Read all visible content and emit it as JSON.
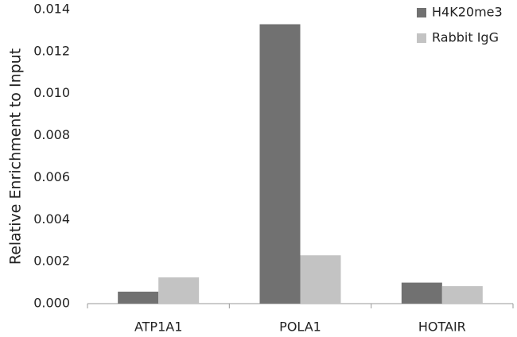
{
  "chart_data": {
    "type": "bar",
    "y_label": "Relative Enrichment to Input",
    "categories": [
      "ATP1A1",
      "POLA1",
      "HOTAIR"
    ],
    "series": [
      {
        "name": "H4K20me3",
        "color": "#717171",
        "values": [
          0.00057,
          0.0133,
          0.001
        ]
      },
      {
        "name": "Rabbit IgG",
        "color": "#c3c3c3",
        "values": [
          0.00125,
          0.0023,
          0.00083
        ]
      }
    ],
    "ylim": [
      0,
      0.014
    ],
    "yticks": [
      {
        "value": 0,
        "label": "0.000"
      },
      {
        "value": 0.002,
        "label": "0.002"
      },
      {
        "value": 0.004,
        "label": "0.004"
      },
      {
        "value": 0.006,
        "label": "0.006"
      },
      {
        "value": 0.008,
        "label": "0.008"
      },
      {
        "value": 0.01,
        "label": "0.010"
      },
      {
        "value": 0.012,
        "label": "0.012"
      },
      {
        "value": 0.014,
        "label": "0.014"
      }
    ],
    "legend": "top-right"
  }
}
